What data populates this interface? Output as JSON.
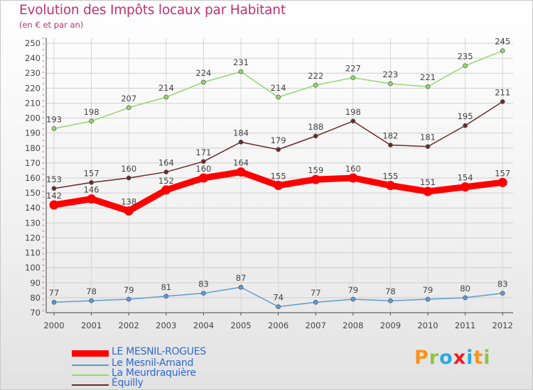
{
  "chart_data": {
    "type": "line",
    "title": "Evolution des Impôts locaux par Habitant",
    "subtitle": "(en € et par an)",
    "xlabel": "",
    "ylabel": "",
    "x": [
      "2000",
      "2001",
      "2002",
      "2003",
      "2004",
      "2005",
      "2006",
      "2007",
      "2008",
      "2009",
      "2010",
      "2011",
      "2012"
    ],
    "ylim": [
      70,
      250
    ],
    "yticks": [
      70,
      80,
      90,
      100,
      110,
      120,
      130,
      140,
      150,
      160,
      170,
      180,
      190,
      200,
      210,
      220,
      230,
      240,
      250
    ],
    "grid": true,
    "legend_position": "bottom-left",
    "series": [
      {
        "name": "LE MESNIL-ROGUES",
        "color": "#ff0000",
        "values": [
          142,
          146,
          138,
          152,
          160,
          164,
          155,
          159,
          160,
          155,
          151,
          154,
          157
        ]
      },
      {
        "name": "Le Mesnil-Amand",
        "color": "#5b9bd5",
        "values": [
          77,
          78,
          79,
          81,
          83,
          87,
          74,
          77,
          79,
          78,
          79,
          80,
          83
        ]
      },
      {
        "name": "La Meurdraquière",
        "color": "#8fd96b",
        "values": [
          193,
          198,
          207,
          214,
          224,
          231,
          214,
          222,
          227,
          223,
          221,
          235,
          245
        ]
      },
      {
        "name": "Équilly",
        "color": "#6b2a2a",
        "values": [
          153,
          157,
          160,
          164,
          171,
          184,
          179,
          188,
          198,
          182,
          181,
          195,
          211
        ]
      }
    ]
  },
  "logo": {
    "text": "Proxiti",
    "colors": [
      "#f7941d",
      "#8dc63f",
      "#29abe2",
      "#ed1c24",
      "#29abe2",
      "#f7941d",
      "#8dc63f"
    ]
  }
}
